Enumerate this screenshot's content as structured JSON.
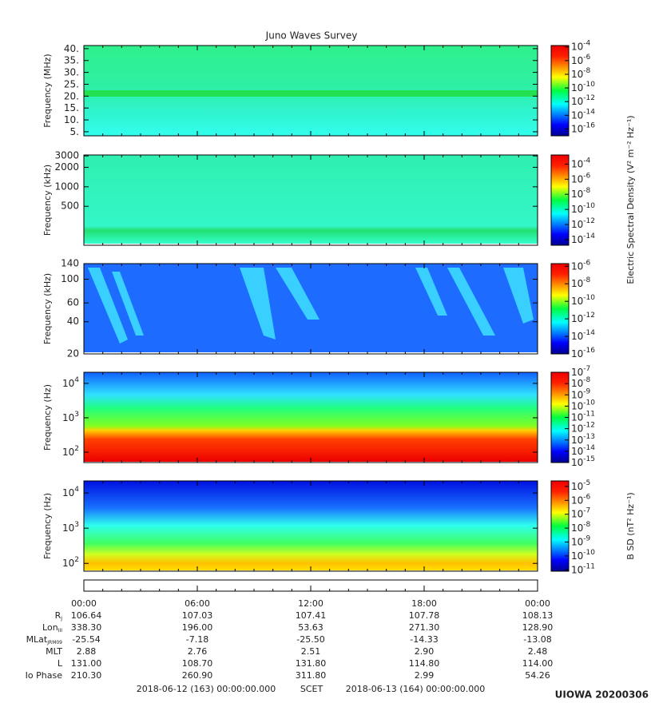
{
  "title": "Juno Waves Survey",
  "chart_data": [
    {
      "type": "spectrogram",
      "ylabel": "Frequency (MHz)",
      "ylog": false,
      "ylim": [
        3.3,
        41.3
      ],
      "yticks": [
        {
          "value": 5,
          "label": "5."
        },
        {
          "value": 10,
          "label": "10."
        },
        {
          "value": 15,
          "label": "15."
        },
        {
          "value": 20,
          "label": "20."
        },
        {
          "value": 25,
          "label": "25."
        },
        {
          "value": 30,
          "label": "30."
        },
        {
          "value": 35,
          "label": "35."
        },
        {
          "value": 40,
          "label": "40."
        }
      ],
      "zlim": [
        1e-17,
        0.00016
      ],
      "zticks": [
        {
          "value": 0.0001,
          "label": "10",
          "sup": "-4"
        },
        {
          "value": 1e-06,
          "label": "10",
          "sup": "-6"
        },
        {
          "value": 1e-08,
          "label": "10",
          "sup": "-8"
        },
        {
          "value": 1e-10,
          "label": "10",
          "sup": "-10"
        },
        {
          "value": 1e-12,
          "label": "10",
          "sup": "-12"
        },
        {
          "value": 1e-14,
          "label": "10",
          "sup": "-14"
        },
        {
          "value": 1e-16,
          "label": "10",
          "sup": "-16"
        }
      ]
    },
    {
      "type": "spectrogram",
      "ylabel": "Frequency (kHz)",
      "ylog": true,
      "ylim": [
        125,
        3100
      ],
      "yticks": [
        500,
        1000,
        2000,
        3000
      ],
      "zlim": [
        1.8e-15,
        0.0016
      ],
      "zticks": [
        {
          "value": 0.0001,
          "label": "10",
          "sup": "-4"
        },
        {
          "value": 1e-06,
          "label": "10",
          "sup": "-6"
        },
        {
          "value": 1e-08,
          "label": "10",
          "sup": "-8"
        },
        {
          "value": 1e-10,
          "label": "10",
          "sup": "-10"
        },
        {
          "value": 1e-12,
          "label": "10",
          "sup": "-12"
        },
        {
          "value": 1e-14,
          "label": "10",
          "sup": "-14"
        }
      ],
      "zlabel": "Electric Spectral Density (V² m⁻² Hz⁻¹)"
    },
    {
      "type": "spectrogram",
      "ylabel": "Frequency (kHz)",
      "ylog": true,
      "ylim": [
        20,
        140
      ],
      "yticks": [
        20,
        40,
        60,
        100,
        140
      ],
      "zlim": [
        1e-16,
        2e-06
      ],
      "zticks": [
        {
          "value": 1e-06,
          "label": "10",
          "sup": "-6"
        },
        {
          "value": 1e-08,
          "label": "10",
          "sup": "-8"
        },
        {
          "value": 1e-10,
          "label": "10",
          "sup": "-10"
        },
        {
          "value": 1e-12,
          "label": "10",
          "sup": "-12"
        },
        {
          "value": 1e-14,
          "label": "10",
          "sup": "-14"
        },
        {
          "value": 1e-16,
          "label": "10",
          "sup": "-16"
        }
      ]
    },
    {
      "type": "spectrogram",
      "ylabel": "Frequency (Hz)",
      "ylog": true,
      "ylim": [
        50,
        21000
      ],
      "yticks": [
        {
          "value": 100,
          "label": "10",
          "sup": "2"
        },
        {
          "value": 1000,
          "label": "10",
          "sup": "3"
        },
        {
          "value": 10000,
          "label": "10",
          "sup": "4"
        }
      ],
      "zlim": [
        1e-15,
        1e-07
      ],
      "zticks": [
        {
          "value": 1e-07,
          "label": "10",
          "sup": "-7"
        },
        {
          "value": 1e-08,
          "label": "10",
          "sup": "-8"
        },
        {
          "value": 1e-09,
          "label": "10",
          "sup": "-9"
        },
        {
          "value": 1e-10,
          "label": "10",
          "sup": "-10"
        },
        {
          "value": 1e-11,
          "label": "10",
          "sup": "-11"
        },
        {
          "value": 1e-12,
          "label": "10",
          "sup": "-12"
        },
        {
          "value": 1e-13,
          "label": "10",
          "sup": "-13"
        },
        {
          "value": 1e-14,
          "label": "10",
          "sup": "-14"
        },
        {
          "value": 1e-15,
          "label": "10",
          "sup": "-15"
        }
      ]
    },
    {
      "type": "spectrogram",
      "ylabel": "Frequency (Hz)",
      "ylog": true,
      "ylim": [
        60,
        22000
      ],
      "yticks": [
        {
          "value": 100,
          "label": "10",
          "sup": "2"
        },
        {
          "value": 1000,
          "label": "10",
          "sup": "3"
        },
        {
          "value": 10000,
          "label": "10",
          "sup": "4"
        }
      ],
      "zlim": [
        8e-12,
        2.5e-05
      ],
      "zticks": [
        {
          "value": 1e-05,
          "label": "10",
          "sup": "-5"
        },
        {
          "value": 1e-06,
          "label": "10",
          "sup": "-6"
        },
        {
          "value": 1e-07,
          "label": "10",
          "sup": "-7"
        },
        {
          "value": 1e-08,
          "label": "10",
          "sup": "-8"
        },
        {
          "value": 1e-09,
          "label": "10",
          "sup": "-9"
        },
        {
          "value": 1e-10,
          "label": "10",
          "sup": "-10"
        },
        {
          "value": 1e-11,
          "label": "10",
          "sup": "-11"
        }
      ],
      "zlabel": "B SD (nT² Hz⁻¹)"
    }
  ],
  "time_axis": [
    "00:00",
    "06:00",
    "12:00",
    "18:00",
    "00:00"
  ],
  "ephemeris": [
    {
      "label": "R",
      "sub": "J",
      "values": [
        "106.64",
        "107.03",
        "107.41",
        "107.78",
        "108.13"
      ]
    },
    {
      "label": "Lon",
      "sub": "III",
      "values": [
        "338.30",
        "196.00",
        "53.63",
        "271.30",
        "128.90"
      ]
    },
    {
      "label": "MLat",
      "sub": "JRM09",
      "values": [
        "-25.54",
        "-7.18",
        "-25.50",
        "-14.33",
        "-13.08"
      ]
    },
    {
      "label": "MLT",
      "values": [
        "2.88",
        "2.76",
        "2.51",
        "2.90",
        "2.48"
      ]
    },
    {
      "label": "L",
      "values": [
        "131.00",
        "108.70",
        "131.80",
        "114.80",
        "114.00"
      ]
    },
    {
      "label": "Io Phase",
      "values": [
        "210.30",
        "260.90",
        "311.80",
        "2.99",
        "54.26"
      ]
    }
  ],
  "footer": {
    "start": "2018-06-12 (163) 00:00:00.000",
    "frame": "SCET",
    "end": "2018-06-13 (164) 00:00:00.000"
  },
  "stamp": "UIOWA 20200306"
}
